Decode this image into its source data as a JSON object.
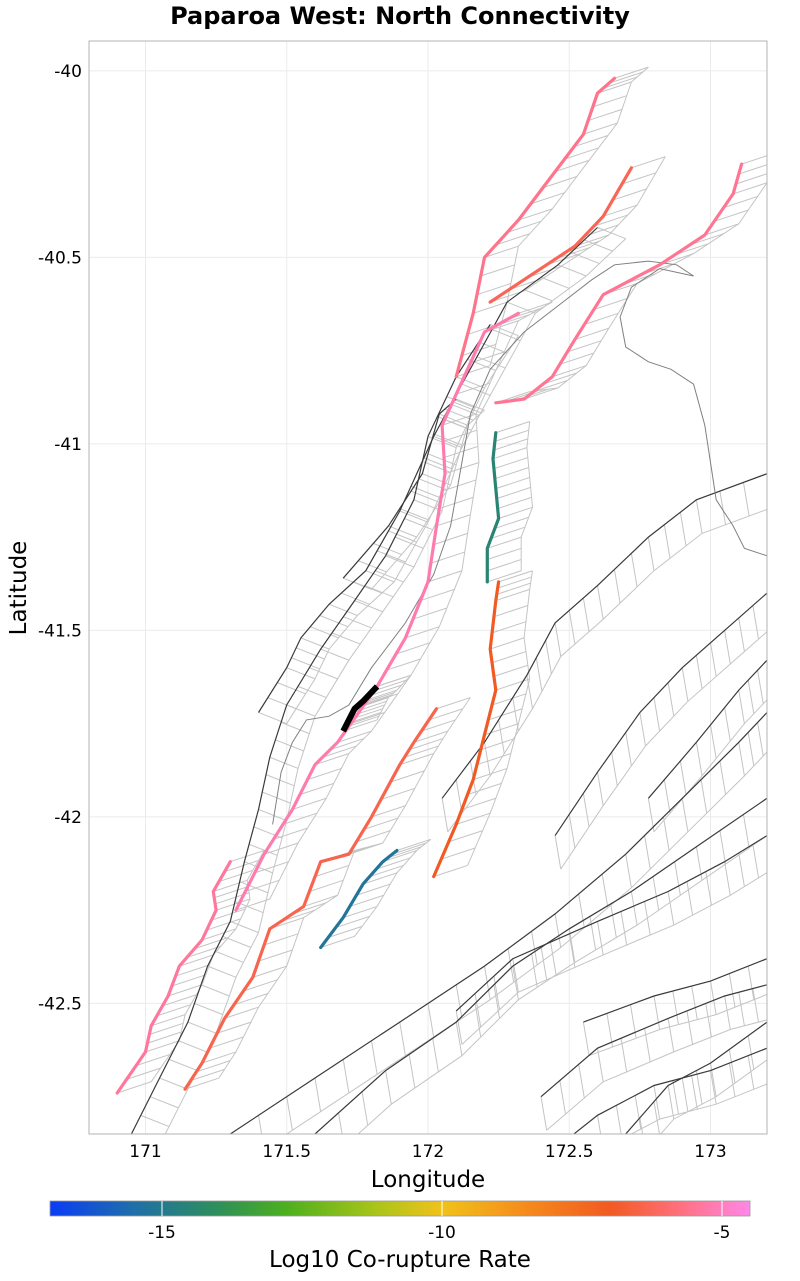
{
  "title": "Paparoa West: North Connectivity",
  "axes": {
    "xlabel": "Longitude",
    "ylabel": "Latitude",
    "xlim": [
      170.8,
      173.2
    ],
    "ylim": [
      -42.85,
      -39.92
    ],
    "xticks": [
      171,
      171.5,
      172,
      172.5,
      173
    ],
    "yticks": [
      -40,
      -40.5,
      -41,
      -41.5,
      -42,
      -42.5
    ],
    "xtick_labels": [
      "171",
      "171.5",
      "172",
      "172.5",
      "173"
    ],
    "ytick_labels": [
      "-40",
      "-40.5",
      "-41",
      "-41.5",
      "-42",
      "-42.5"
    ]
  },
  "colorbar": {
    "title": "Log10 Co-rupture Rate",
    "range": [
      -17,
      -4.5
    ],
    "ticks": [
      -15,
      -10,
      -5
    ],
    "tick_labels": [
      "-15",
      "-10",
      "-5"
    ],
    "stops": [
      {
        "v": -17,
        "c": "#0a3cf5"
      },
      {
        "v": -15.5,
        "c": "#1f6fa8"
      },
      {
        "v": -14,
        "c": "#2e8f5a"
      },
      {
        "v": -12.8,
        "c": "#4caf1e"
      },
      {
        "v": -11.2,
        "c": "#a8c41a"
      },
      {
        "v": -10,
        "c": "#f1c21a"
      },
      {
        "v": -8.5,
        "c": "#f58b1c"
      },
      {
        "v": -7,
        "c": "#f15a22"
      },
      {
        "v": -5.8,
        "c": "#ff6f7a"
      },
      {
        "v": -4.5,
        "c": "#ff88e8"
      }
    ]
  },
  "colors": {
    "background": "#ffffff",
    "grid": "#ebebeb",
    "panel_border": "#b3b3b3",
    "fault_surface": "#c4c4c4",
    "fault_trace": "#3a3a3a",
    "coastline": "#808080",
    "target_section": "#000000"
  },
  "chart_data": {
    "type": "map",
    "title": "Paparoa West: North Connectivity",
    "xlabel": "Longitude",
    "ylabel": "Latitude",
    "target": {
      "name": "Paparoa West",
      "trace": [
        [
          171.82,
          -41.65
        ],
        [
          171.77,
          -41.69
        ],
        [
          171.74,
          -41.71
        ],
        [
          171.72,
          -41.74
        ],
        [
          171.7,
          -41.77
        ]
      ]
    },
    "coloured_faults": [
      {
        "log10_rate": -5.4,
        "trace": [
          [
            170.9,
            -42.74
          ],
          [
            171.0,
            -42.63
          ],
          [
            171.02,
            -42.56
          ],
          [
            171.08,
            -42.48
          ],
          [
            171.12,
            -42.4
          ],
          [
            171.2,
            -42.33
          ],
          [
            171.25,
            -42.25
          ],
          [
            171.24,
            -42.2
          ],
          [
            171.3,
            -42.12
          ]
        ]
      },
      {
        "log10_rate": -5.2,
        "trace": [
          [
            171.32,
            -42.25
          ],
          [
            171.42,
            -42.1
          ],
          [
            171.52,
            -41.98
          ],
          [
            171.6,
            -41.86
          ],
          [
            171.68,
            -41.8
          ],
          [
            171.82,
            -41.65
          ],
          [
            171.92,
            -41.52
          ],
          [
            172.0,
            -41.37
          ],
          [
            172.03,
            -41.22
          ],
          [
            172.06,
            -41.08
          ],
          [
            172.05,
            -40.95
          ],
          [
            172.2,
            -40.7
          ],
          [
            172.32,
            -40.65
          ]
        ]
      },
      {
        "log10_rate": -5.6,
        "trace": [
          [
            172.1,
            -40.82
          ],
          [
            172.16,
            -40.65
          ],
          [
            172.2,
            -40.5
          ],
          [
            172.32,
            -40.4
          ],
          [
            172.45,
            -40.27
          ],
          [
            172.55,
            -40.17
          ],
          [
            172.6,
            -40.06
          ],
          [
            172.66,
            -40.02
          ]
        ]
      },
      {
        "log10_rate": -6.3,
        "trace": [
          [
            172.22,
            -40.62
          ],
          [
            172.42,
            -40.52
          ],
          [
            172.52,
            -40.47
          ],
          [
            172.62,
            -40.39
          ],
          [
            172.72,
            -40.26
          ]
        ]
      },
      {
        "log10_rate": -5.5,
        "trace": [
          [
            172.24,
            -40.89
          ],
          [
            172.34,
            -40.88
          ],
          [
            172.44,
            -40.82
          ],
          [
            172.52,
            -40.72
          ],
          [
            172.62,
            -40.6
          ],
          [
            172.82,
            -40.52
          ],
          [
            172.98,
            -40.44
          ],
          [
            173.08,
            -40.33
          ],
          [
            173.11,
            -40.25
          ]
        ]
      },
      {
        "log10_rate": -6.4,
        "trace": [
          [
            171.14,
            -42.73
          ],
          [
            171.2,
            -42.66
          ],
          [
            171.28,
            -42.54
          ],
          [
            171.38,
            -42.43
          ],
          [
            171.44,
            -42.3
          ],
          [
            171.56,
            -42.24
          ],
          [
            171.62,
            -42.12
          ],
          [
            171.72,
            -42.1
          ],
          [
            171.8,
            -42.0
          ],
          [
            171.9,
            -41.86
          ],
          [
            171.95,
            -41.8
          ],
          [
            172.03,
            -41.71
          ]
        ]
      },
      {
        "log10_rate": -15.2,
        "trace": [
          [
            171.62,
            -42.35
          ],
          [
            171.7,
            -42.27
          ],
          [
            171.77,
            -42.18
          ],
          [
            171.84,
            -42.12
          ],
          [
            171.89,
            -42.09
          ]
        ]
      },
      {
        "log10_rate": -7.0,
        "trace": [
          [
            172.02,
            -42.16
          ],
          [
            172.1,
            -42.02
          ],
          [
            172.16,
            -41.9
          ],
          [
            172.2,
            -41.78
          ],
          [
            172.24,
            -41.66
          ],
          [
            172.22,
            -41.55
          ],
          [
            172.24,
            -41.42
          ],
          [
            172.25,
            -41.37
          ]
        ]
      },
      {
        "log10_rate": -14.5,
        "trace": [
          [
            172.21,
            -41.37
          ],
          [
            172.21,
            -41.28
          ],
          [
            172.25,
            -41.2
          ],
          [
            172.24,
            -41.12
          ],
          [
            172.23,
            -41.04
          ],
          [
            172.24,
            -40.97
          ]
        ]
      }
    ]
  }
}
